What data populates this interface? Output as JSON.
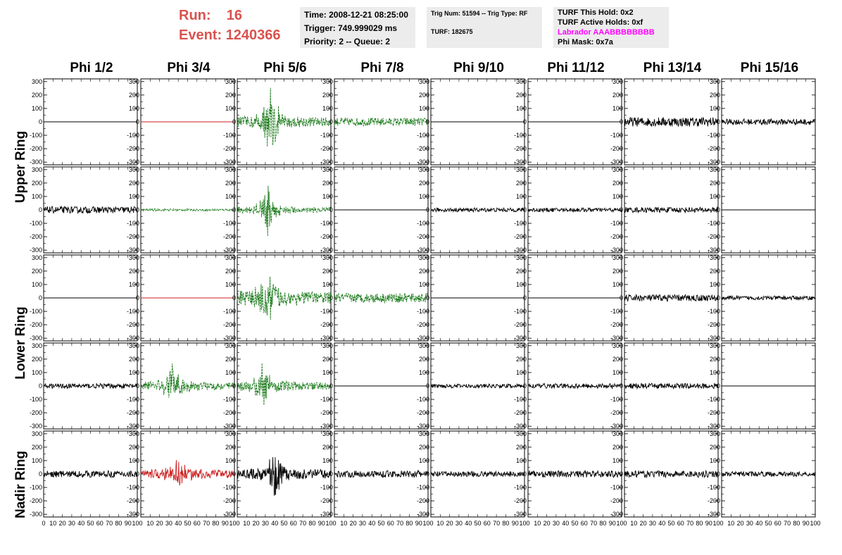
{
  "header": {
    "run_label": "Run:",
    "run_value": "16",
    "event_label": "Event:",
    "event_value": "1240366",
    "time": "Time: 2008-12-21 08:25:00",
    "trigger": "Trigger: 749.999029 ms",
    "priority": "Priority: 2 -- Queue: 2",
    "trig_num": "Trig Num: 51594 -- Trig Type: RF",
    "turf": "TURF: 182675",
    "turf_hold": "TURF This Hold: 0x2",
    "turf_active": "TURF Active Holds: 0xf",
    "labrador": "Labrador AAABBBBBBBB",
    "phi_mask": "Phi Mask: 0x7a"
  },
  "chart_data": {
    "type": "line",
    "columns": [
      "Phi 1/2",
      "Phi 3/4",
      "Phi 5/6",
      "Phi 7/8",
      "Phi 9/10",
      "Phi 11/12",
      "Phi 13/14",
      "Phi 15/16"
    ],
    "ring_labels": [
      {
        "text": "Upper Ring"
      },
      {
        "text": "Lower Ring"
      },
      {
        "text": "Nadir Ring"
      }
    ],
    "ylim": [
      -320,
      320
    ],
    "xlim": [
      0,
      100
    ],
    "y_ticks": [
      "300",
      "200",
      "100",
      "0",
      "-100",
      "-200",
      "-300"
    ],
    "x_ticks": [
      "0",
      "10",
      "20",
      "30",
      "40",
      "50",
      "60",
      "70",
      "80",
      "90",
      "100"
    ],
    "colors": {
      "black": "#000000",
      "green": "#1a7a1a",
      "red": "#cc2222"
    },
    "panels": [
      [
        {
          "style": "flat",
          "color": "black",
          "amp": 0
        },
        {
          "style": "flat",
          "color": "red",
          "amp": 0
        },
        {
          "style": "burst",
          "color": "green",
          "amp": 60,
          "peak": 300,
          "center": 36
        },
        {
          "style": "noise",
          "color": "green",
          "amp": 30
        },
        {
          "style": "flat",
          "color": "black",
          "amp": 0
        },
        {
          "style": "flat",
          "color": "black",
          "amp": 0
        },
        {
          "style": "noise",
          "color": "black",
          "amp": 35
        },
        {
          "style": "noise",
          "color": "black",
          "amp": 22
        }
      ],
      [
        {
          "style": "noise",
          "color": "black",
          "amp": 25
        },
        {
          "style": "noise",
          "color": "green",
          "amp": 8
        },
        {
          "style": "burst",
          "color": "green",
          "amp": 35,
          "peak": 200,
          "center": 33
        },
        {
          "style": "flat",
          "color": "black",
          "amp": 0
        },
        {
          "style": "noise",
          "color": "black",
          "amp": 15
        },
        {
          "style": "noise",
          "color": "black",
          "amp": 15
        },
        {
          "style": "noise",
          "color": "black",
          "amp": 20
        },
        {
          "style": "flat",
          "color": "black",
          "amp": 0
        }
      ],
      [
        {
          "style": "flat",
          "color": "black",
          "amp": 0
        },
        {
          "style": "flat",
          "color": "red",
          "amp": 0
        },
        {
          "style": "burst",
          "color": "green",
          "amp": 80,
          "peak": 300,
          "center": 33
        },
        {
          "style": "noise",
          "color": "green",
          "amp": 35
        },
        {
          "style": "flat",
          "color": "black",
          "amp": 0
        },
        {
          "style": "flat",
          "color": "black",
          "amp": 0
        },
        {
          "style": "noise",
          "color": "black",
          "amp": 25
        },
        {
          "style": "noise",
          "color": "black",
          "amp": 15
        }
      ],
      [
        {
          "style": "noise",
          "color": "black",
          "amp": 18
        },
        {
          "style": "burst",
          "color": "green",
          "amp": 50,
          "peak": 180,
          "center": 33
        },
        {
          "style": "burst",
          "color": "green",
          "amp": 50,
          "peak": 180,
          "center": 28
        },
        {
          "style": "flat",
          "color": "black",
          "amp": 0
        },
        {
          "style": "noise",
          "color": "black",
          "amp": 15
        },
        {
          "style": "noise",
          "color": "black",
          "amp": 18
        },
        {
          "style": "noise",
          "color": "black",
          "amp": 20
        },
        {
          "style": "flat",
          "color": "black",
          "amp": 0
        }
      ],
      [
        {
          "style": "noise",
          "color": "black",
          "amp": 25
        },
        {
          "style": "burst",
          "color": "red",
          "amp": 50,
          "peak": 90,
          "center": 40
        },
        {
          "style": "burst",
          "color": "black",
          "amp": 60,
          "peak": 230,
          "center": 40
        },
        {
          "style": "noise",
          "color": "black",
          "amp": 25
        },
        {
          "style": "noise",
          "color": "black",
          "amp": 20
        },
        {
          "style": "noise",
          "color": "black",
          "amp": 25
        },
        {
          "style": "noise",
          "color": "black",
          "amp": 25
        },
        {
          "style": "noise",
          "color": "black",
          "amp": 18
        }
      ]
    ]
  }
}
